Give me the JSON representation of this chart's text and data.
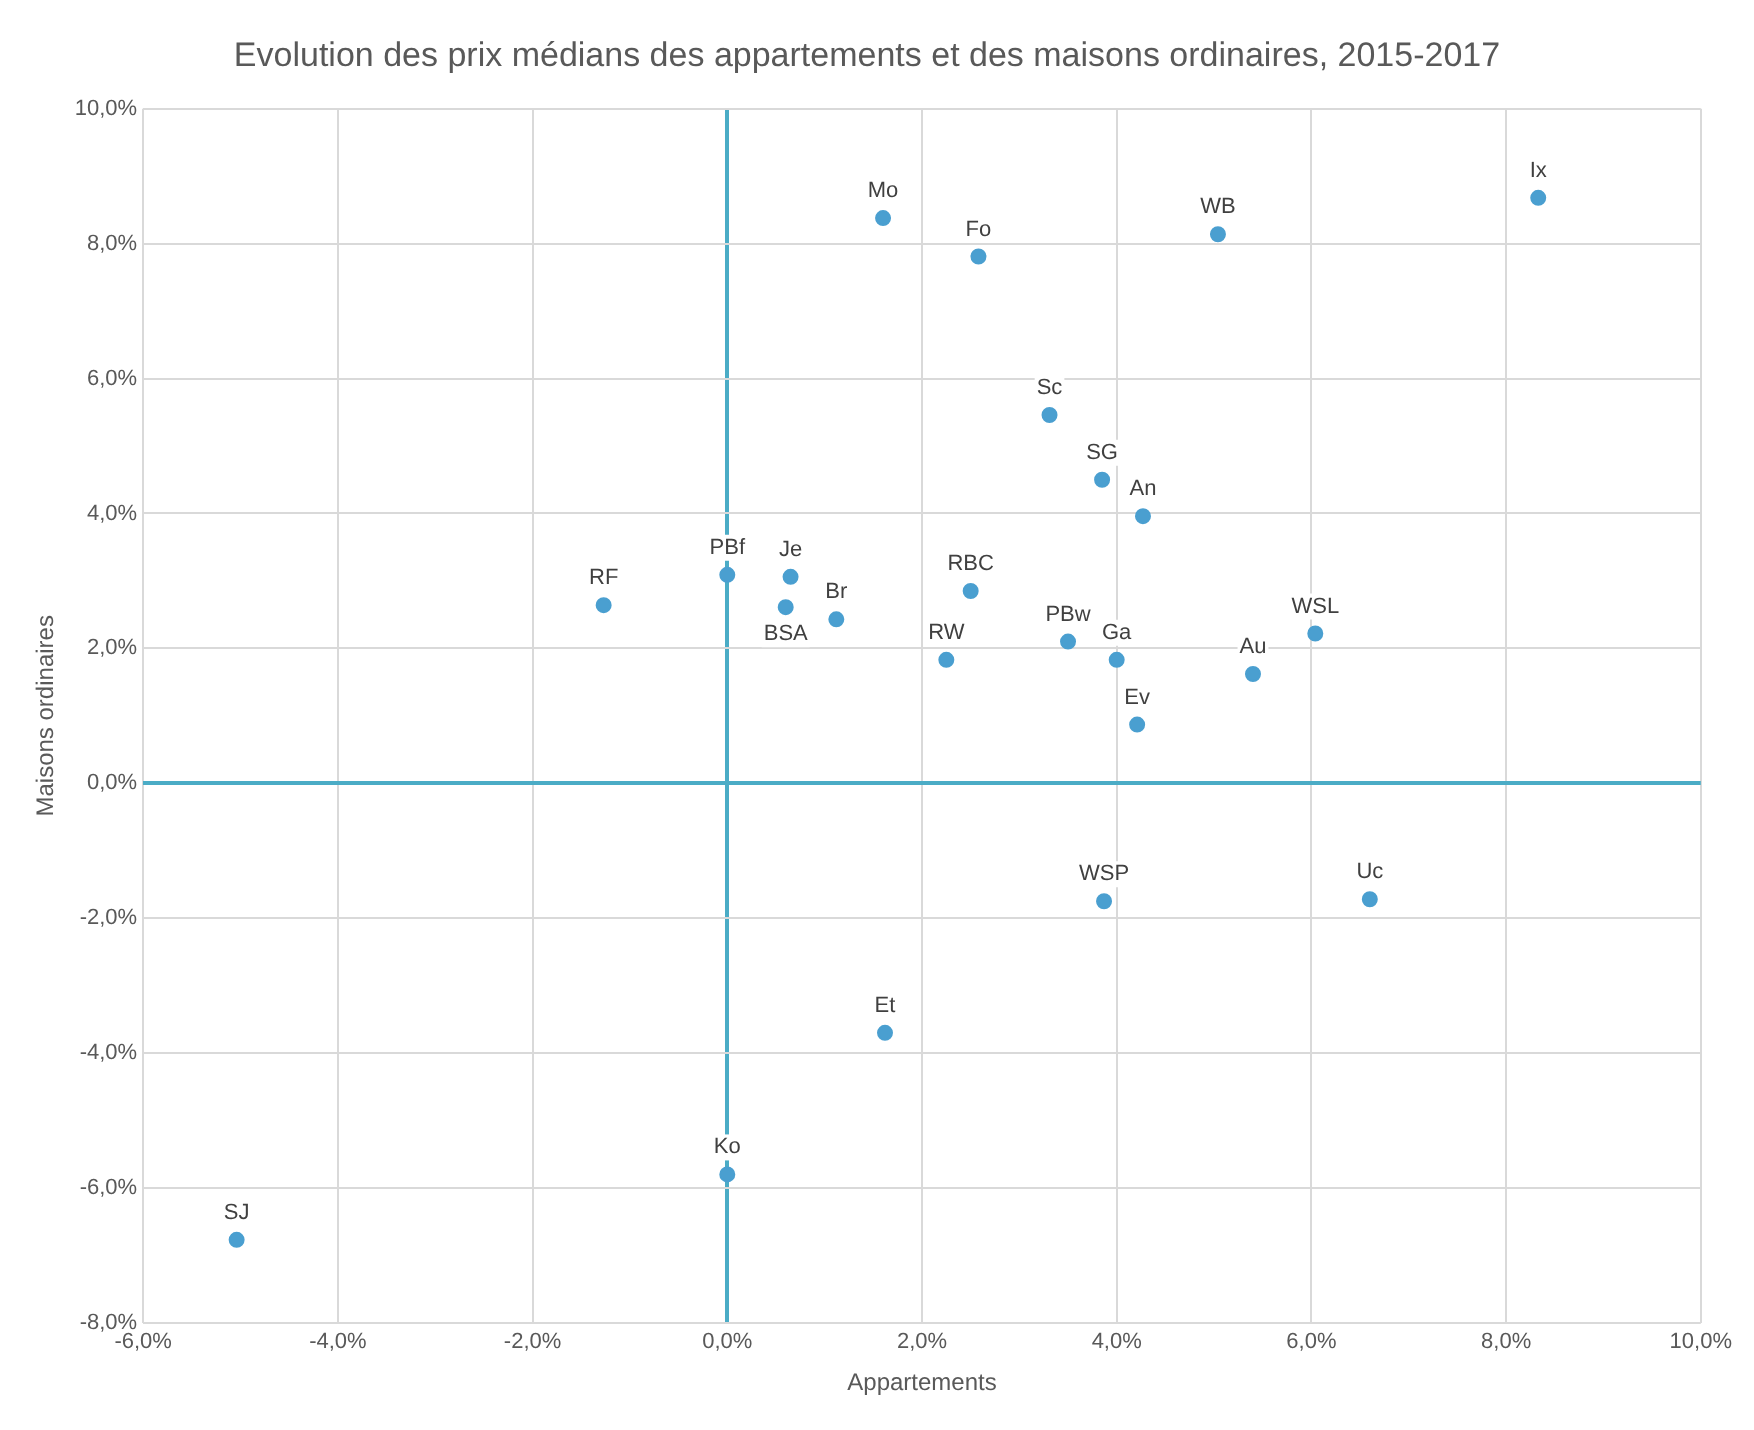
{
  "chart_data": {
    "type": "scatter",
    "title": "Evolution des prix médians des appartements et des maisons ordinaires, 2015-2017",
    "xlabel": "Appartements",
    "ylabel": "Maisons ordinaires",
    "series": [
      {
        "color": "#4a9fd0",
        "x": [
          1.6,
          2.58,
          5.04,
          8.33,
          3.31,
          3.85,
          4.27,
          0.0,
          0.65,
          -1.27,
          0.6,
          1.12,
          2.5,
          2.25,
          3.5,
          4.0,
          6.04,
          5.4,
          4.21,
          3.87,
          6.6,
          1.62,
          0.0,
          -5.04
        ],
        "values": [
          8.38,
          7.81,
          8.14,
          8.68,
          5.46,
          4.5,
          3.96,
          3.09,
          3.06,
          2.64,
          2.61,
          2.43,
          2.85,
          1.83,
          2.1,
          1.83,
          2.22,
          1.62,
          0.87,
          -1.75,
          -1.72,
          -3.7,
          -5.8,
          -6.77
        ]
      }
    ],
    "annotations": [
      {
        "text": "Mo",
        "x": 1.6,
        "y": 8.38
      },
      {
        "text": "Fo",
        "x": 2.58,
        "y": 7.81
      },
      {
        "text": "WB",
        "x": 5.04,
        "y": 8.14
      },
      {
        "text": "Ix",
        "x": 8.33,
        "y": 8.68
      },
      {
        "text": "Sc",
        "x": 3.31,
        "y": 5.46
      },
      {
        "text": "SG",
        "x": 3.85,
        "y": 4.5
      },
      {
        "text": "An",
        "x": 4.27,
        "y": 3.96
      },
      {
        "text": "PBf",
        "x": 0.0,
        "y": 3.09
      },
      {
        "text": "Je",
        "x": 0.65,
        "y": 3.06
      },
      {
        "text": "RF",
        "x": -1.27,
        "y": 2.64
      },
      {
        "text": "BSA",
        "x": 0.6,
        "y": 2.61
      },
      {
        "text": "Br",
        "x": 1.12,
        "y": 2.43
      },
      {
        "text": "RBC",
        "x": 2.5,
        "y": 2.85
      },
      {
        "text": "RW",
        "x": 2.25,
        "y": 1.83
      },
      {
        "text": "PBw",
        "x": 3.5,
        "y": 2.1
      },
      {
        "text": "Ga",
        "x": 4.0,
        "y": 1.83
      },
      {
        "text": "WSL",
        "x": 6.04,
        "y": 2.22
      },
      {
        "text": "Au",
        "x": 5.4,
        "y": 1.62
      },
      {
        "text": "Ev",
        "x": 4.21,
        "y": 0.87
      },
      {
        "text": "WSP",
        "x": 3.87,
        "y": -1.75
      },
      {
        "text": "Uc",
        "x": 6.6,
        "y": -1.72
      },
      {
        "text": "Et",
        "x": 1.62,
        "y": -3.7
      },
      {
        "text": "Ko",
        "x": 0.0,
        "y": -5.8
      },
      {
        "text": "SJ",
        "x": -5.04,
        "y": -6.77
      }
    ],
    "xlim": [
      -6,
      10
    ],
    "ylim": [
      -8,
      10
    ],
    "xticks": [
      {
        "value": -6,
        "label": "-6,0%"
      },
      {
        "value": -4,
        "label": "-4,0%"
      },
      {
        "value": -2,
        "label": "-2,0%"
      },
      {
        "value": 0,
        "label": "0,0%"
      },
      {
        "value": 2,
        "label": "2,0%"
      },
      {
        "value": 4,
        "label": "4,0%"
      },
      {
        "value": 6,
        "label": "6,0%"
      },
      {
        "value": 8,
        "label": "8,0%"
      },
      {
        "value": 10,
        "label": "10,0%"
      }
    ],
    "yticks": [
      {
        "value": -8,
        "label": "-8,0%"
      },
      {
        "value": -6,
        "label": "-6,0%"
      },
      {
        "value": -4,
        "label": "-4,0%"
      },
      {
        "value": -2,
        "label": "-2,0%"
      },
      {
        "value": 0,
        "label": "0,0%"
      },
      {
        "value": 2,
        "label": "2,0%"
      },
      {
        "value": 4,
        "label": "4,0%"
      },
      {
        "value": 6,
        "label": "6,0%"
      },
      {
        "value": 8,
        "label": "8,0%"
      },
      {
        "value": 10,
        "label": "10,0%"
      }
    ],
    "grid": true,
    "marker": "circle"
  }
}
